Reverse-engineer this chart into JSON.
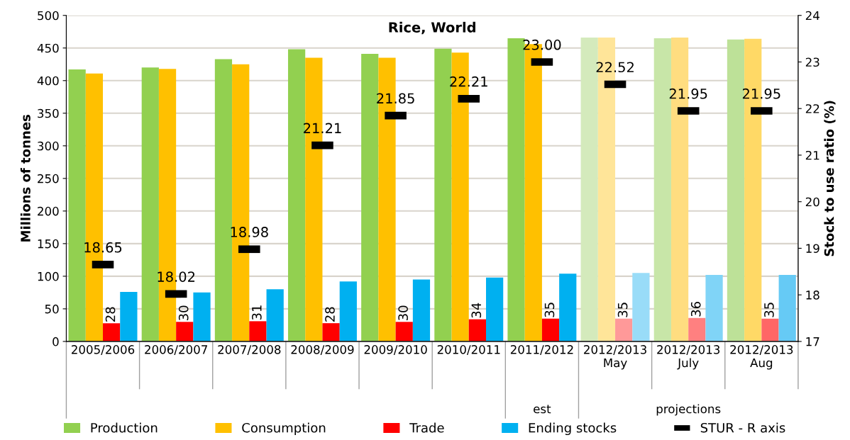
{
  "chart_data": {
    "type": "bar",
    "title": "Rice, World",
    "ylabel": "Millions of tonnes",
    "y2label": "Stock to use ratio (%)",
    "categories": [
      "2005/2006",
      "2006/2007",
      "2007/2008",
      "2008/2009",
      "2009/2010",
      "2010/2011",
      "2011/2012",
      "2012/2013\nMay",
      "2012/2013\nJuly",
      "2012/2013\nAug"
    ],
    "series": [
      {
        "name": "Production",
        "color": "#92d050",
        "colors": [
          "#92d050",
          "#92d050",
          "#92d050",
          "#92d050",
          "#92d050",
          "#92d050",
          "#92d050",
          "#d4eabc",
          "#c8e6a8",
          "#bde198"
        ],
        "values": [
          417,
          420,
          433,
          448,
          441,
          449,
          465,
          466,
          465,
          463
        ]
      },
      {
        "name": "Consumption",
        "color": "#ffc000",
        "colors": [
          "#ffc000",
          "#ffc000",
          "#ffc000",
          "#ffc000",
          "#ffc000",
          "#ffc000",
          "#ffc000",
          "#ffe599",
          "#ffdd80",
          "#ffd966"
        ],
        "values": [
          411,
          418,
          425,
          435,
          435,
          443,
          456,
          466,
          466,
          464
        ]
      },
      {
        "name": "Trade",
        "color": "#ff0000",
        "colors": [
          "#ff0000",
          "#ff0000",
          "#ff0000",
          "#ff0000",
          "#ff0000",
          "#ff0000",
          "#ff0000",
          "#ff9999",
          "#ff8080",
          "#ff6666"
        ],
        "values": [
          28,
          30,
          31,
          28,
          30,
          34,
          35,
          35,
          36,
          35
        ],
        "value_labels": [
          "28",
          "30",
          "31",
          "28",
          "30",
          "34",
          "35",
          "35",
          "36",
          "35"
        ]
      },
      {
        "name": "Ending stocks",
        "color": "#00b0f0",
        "colors": [
          "#00b0f0",
          "#00b0f0",
          "#00b0f0",
          "#00b0f0",
          "#00b0f0",
          "#00b0f0",
          "#00b0f0",
          "#99dcf8",
          "#80d4f7",
          "#66caf5"
        ],
        "values": [
          76,
          75,
          80,
          92,
          95,
          98,
          104,
          105,
          102,
          102
        ]
      },
      {
        "name": "STUR - R axis",
        "type": "scatter",
        "axis": "y2",
        "color": "#000000",
        "values": [
          18.65,
          18.02,
          18.98,
          21.21,
          21.85,
          22.21,
          23.0,
          22.52,
          21.95,
          21.95
        ],
        "value_labels": [
          "18.65",
          "18.02",
          "18.98",
          "21.21",
          "21.85",
          "22.21",
          "23.00",
          "22.52",
          "21.95",
          "21.95"
        ]
      }
    ],
    "ylim": [
      0,
      500
    ],
    "yticks": [
      0,
      50,
      100,
      150,
      200,
      250,
      300,
      350,
      400,
      450,
      500
    ],
    "y2lim": [
      17,
      24
    ],
    "y2ticks": [
      17,
      18,
      19,
      20,
      21,
      22,
      23,
      24
    ],
    "grid": "y",
    "legend": "bottom",
    "annotations": [
      "est",
      "projections"
    ]
  }
}
